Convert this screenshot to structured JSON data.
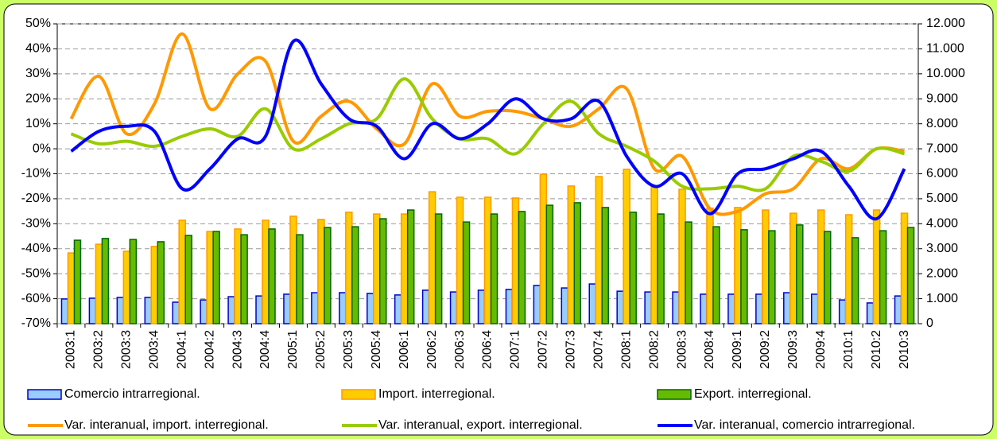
{
  "chart_data": {
    "type": "combo",
    "categories": [
      "2003:1",
      "2003:2",
      "2003:3",
      "2003:4",
      "2004:1",
      "2004:2",
      "2004:3",
      "2004:4",
      "2005:1",
      "2005:2",
      "2005:3",
      "2005:4",
      "2006:1",
      "2006:2",
      "2006:3",
      "2006:4",
      "2007:1",
      "2007:2",
      "2007:3",
      "2007:4",
      "2008:1",
      "2008:2",
      "2008:3",
      "2008:4",
      "2009:1",
      "2009:2",
      "2009:3",
      "2009:4",
      "2010:1",
      "2010:2",
      "2010:3"
    ],
    "series": [
      {
        "name": "Comercio intrarregional.",
        "type": "bar",
        "axis": "y2",
        "color": "#99ccff",
        "edge": "#0000cc",
        "values": [
          990,
          1020,
          1050,
          1050,
          860,
          950,
          1080,
          1110,
          1180,
          1240,
          1240,
          1210,
          1150,
          1340,
          1270,
          1340,
          1370,
          1530,
          1430,
          1590,
          1300,
          1270,
          1270,
          1180,
          1180,
          1180,
          1240,
          1180,
          950,
          830,
          1110
        ]
      },
      {
        "name": "Import. interregional.",
        "type": "bar",
        "axis": "y2",
        "color": "#ffcc00",
        "edge": "#ff9900",
        "values": [
          2830,
          3180,
          2900,
          3090,
          4140,
          3690,
          3790,
          4140,
          4300,
          4170,
          4460,
          4390,
          4390,
          5280,
          5060,
          5060,
          5030,
          5980,
          5510,
          5890,
          6180,
          5470,
          5380,
          4620,
          4650,
          4550,
          4420,
          4550,
          4360,
          4550,
          4420
        ]
      },
      {
        "name": "Export. interregional.",
        "type": "bar",
        "axis": "y2",
        "color": "#66bb00",
        "edge": "#006600",
        "values": [
          3340,
          3410,
          3370,
          3280,
          3530,
          3690,
          3560,
          3790,
          3560,
          3850,
          3880,
          4200,
          4550,
          4390,
          4070,
          4390,
          4490,
          4740,
          4840,
          4650,
          4460,
          4390,
          4070,
          3880,
          3760,
          3720,
          3950,
          3690,
          3440,
          3720,
          3850
        ]
      },
      {
        "name": "Var. interanual, import. interregional.",
        "type": "line",
        "color": "#ff9900",
        "values": [
          12,
          29,
          6,
          18,
          46,
          16,
          30,
          35,
          3,
          13,
          19,
          8,
          2,
          26,
          13,
          15,
          15,
          12,
          9,
          16,
          24,
          -8,
          -3,
          -24,
          -25,
          -18,
          -16,
          -4,
          -8,
          0,
          -1
        ]
      },
      {
        "name": "Var. interanual, export. interregional.",
        "type": "line",
        "color": "#99cc00",
        "values": [
          6,
          2,
          3,
          1,
          5,
          8,
          5,
          16,
          0,
          4,
          10,
          12,
          28,
          12,
          4,
          4,
          -2,
          10,
          19,
          6,
          1,
          -5,
          -15,
          -16,
          -15,
          -16,
          -3,
          -5,
          -9,
          0,
          -2
        ]
      },
      {
        "name": "Var. interanual, comercio intrarregional.",
        "type": "line",
        "color": "#0000ff",
        "values": [
          -1,
          7,
          9,
          7,
          -16,
          -8,
          4,
          5,
          43,
          26,
          12,
          9,
          -4,
          10,
          4,
          10,
          20,
          12,
          12,
          19,
          -3,
          -15,
          -10,
          -26,
          -10,
          -8,
          -4,
          -1,
          -15,
          -28,
          -8
        ]
      }
    ],
    "ylim": [
      -70,
      50
    ],
    "yticks": [
      {
        "value": -70,
        "label": "-70%"
      },
      {
        "value": -60,
        "label": "-60%"
      },
      {
        "value": -50,
        "label": "-50%"
      },
      {
        "value": -40,
        "label": "-40%"
      },
      {
        "value": -30,
        "label": "-30%"
      },
      {
        "value": -20,
        "label": "-20%"
      },
      {
        "value": -10,
        "label": "-10%"
      },
      {
        "value": 0,
        "label": "0%"
      },
      {
        "value": 10,
        "label": "10%"
      },
      {
        "value": 20,
        "label": "20%"
      },
      {
        "value": 30,
        "label": "30%"
      },
      {
        "value": 40,
        "label": "40%"
      },
      {
        "value": 50,
        "label": "50%"
      }
    ],
    "y2lim": [
      0,
      12000
    ],
    "y2ticks": [
      0,
      {
        "value": 1000,
        "label": "1.000"
      },
      {
        "value": 2000,
        "label": "2.000"
      },
      {
        "value": 3000,
        "label": "3.000"
      },
      {
        "value": 4000,
        "label": "4.000"
      },
      {
        "value": 5000,
        "label": "5.000"
      },
      {
        "value": 6000,
        "label": "6.000"
      },
      {
        "value": 7000,
        "label": "7.000"
      },
      {
        "value": 8000,
        "label": "8.000"
      },
      {
        "value": 9000,
        "label": "9.000"
      },
      {
        "value": 10000,
        "label": "10.000"
      },
      {
        "value": 11000,
        "label": "11.000"
      },
      {
        "value": 12000,
        "label": "12.000"
      }
    ],
    "grid": true
  }
}
